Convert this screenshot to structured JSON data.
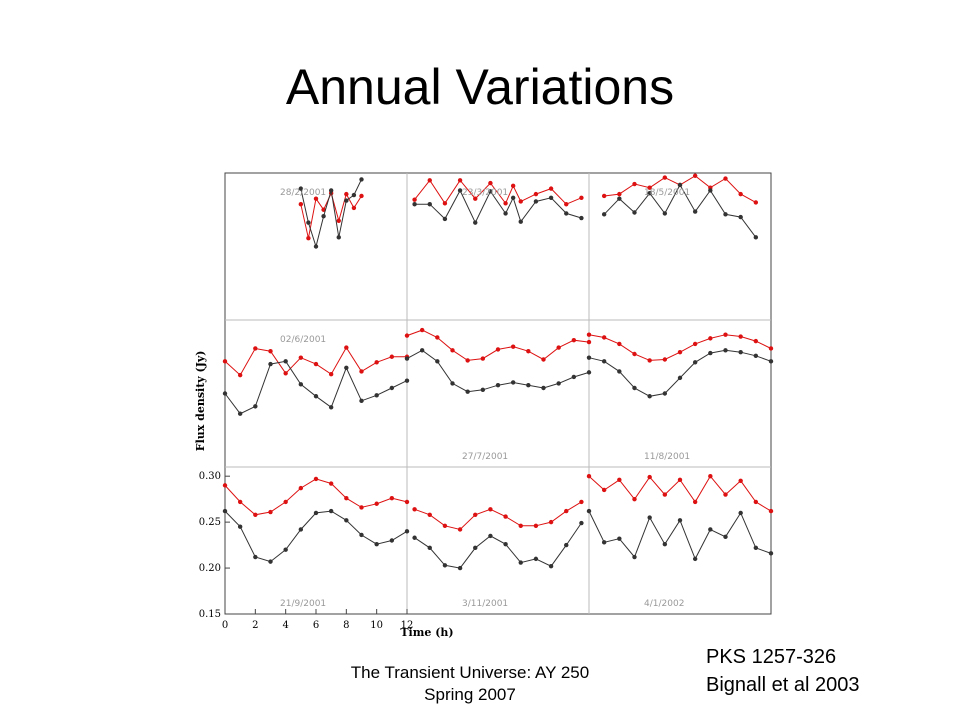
{
  "slide": {
    "title": "Annual Variations",
    "footer_line1": "The Transient Universe: AY 250",
    "footer_line2": "Spring 2007",
    "source_line1": "PKS 1257-326",
    "source_line2": "Bignall et al 2003"
  },
  "colors": {
    "upper_series": "#dd1111",
    "lower_series": "#333333",
    "grid": "#bbbbbb"
  },
  "chart_data": {
    "type": "scatter",
    "xlabel": "Time (h)",
    "ylabel": "Flux density (Jy)",
    "xlim": [
      0,
      12
    ],
    "ylim": [
      0.15,
      0.31
    ],
    "xticks": [
      "0",
      "2",
      "4",
      "6",
      "8",
      "10",
      "12"
    ],
    "yticks": [
      "0.15",
      "0.20",
      "0.25",
      "0.30"
    ],
    "grid": true,
    "panels": [
      {
        "date": "28/2/2001",
        "label_pos": "top",
        "upper": {
          "x": [
            5.0,
            5.5,
            6.0,
            6.5,
            7.0,
            7.5,
            8.0,
            8.5,
            9.0
          ],
          "y": [
            0.276,
            0.239,
            0.282,
            0.27,
            0.288,
            0.258,
            0.287,
            0.272,
            0.285
          ]
        },
        "lower": {
          "x": [
            5.0,
            5.5,
            6.0,
            6.5,
            7.0,
            7.5,
            8.0,
            8.5,
            9.0
          ],
          "y": [
            0.293,
            0.256,
            0.23,
            0.263,
            0.291,
            0.24,
            0.28,
            0.286,
            0.303
          ]
        }
      },
      {
        "date": "23/3/2001",
        "label_pos": "top",
        "upper": {
          "x": [
            0.5,
            1.5,
            2.5,
            3.5,
            4.5,
            5.5,
            6.5,
            7.0,
            7.5,
            8.5,
            9.5,
            10.5,
            11.5
          ],
          "y": [
            0.281,
            0.302,
            0.277,
            0.302,
            0.282,
            0.299,
            0.277,
            0.296,
            0.279,
            0.287,
            0.293,
            0.276,
            0.283
          ]
        },
        "lower": {
          "x": [
            0.5,
            1.5,
            2.5,
            3.5,
            4.5,
            5.5,
            6.5,
            7.0,
            7.5,
            8.5,
            9.5,
            10.5,
            11.5
          ],
          "y": [
            0.276,
            0.276,
            0.26,
            0.291,
            0.256,
            0.29,
            0.266,
            0.283,
            0.257,
            0.279,
            0.283,
            0.266,
            0.261
          ]
        }
      },
      {
        "date": "18/5/2001",
        "label_pos": "top",
        "upper": {
          "x": [
            1.0,
            2.0,
            3.0,
            4.0,
            5.0,
            6.0,
            7.0,
            8.0,
            9.0,
            10.0,
            11.0
          ],
          "y": [
            0.285,
            0.287,
            0.298,
            0.294,
            0.305,
            0.297,
            0.307,
            0.294,
            0.304,
            0.287,
            0.278
          ]
        },
        "lower": {
          "x": [
            1.0,
            2.0,
            3.0,
            4.0,
            5.0,
            6.0,
            7.0,
            8.0,
            9.0,
            10.0,
            11.0
          ],
          "y": [
            0.265,
            0.282,
            0.267,
            0.288,
            0.266,
            0.297,
            0.268,
            0.291,
            0.265,
            0.262,
            0.24
          ]
        }
      },
      {
        "date": "02/6/2001",
        "label_pos": "top",
        "upper": {
          "x": [
            0.0,
            1.0,
            2.0,
            3.0,
            4.0,
            5.0,
            6.0,
            7.0,
            8.0,
            9.0,
            10.0,
            11.0,
            12.0
          ],
          "y": [
            0.265,
            0.25,
            0.279,
            0.276,
            0.252,
            0.269,
            0.262,
            0.251,
            0.28,
            0.254,
            0.264,
            0.27,
            0.27
          ]
        },
        "lower": {
          "x": [
            0.0,
            1.0,
            2.0,
            3.0,
            4.0,
            5.0,
            6.0,
            7.0,
            8.0,
            9.0,
            10.0,
            11.0,
            12.0
          ],
          "y": [
            0.23,
            0.208,
            0.216,
            0.262,
            0.265,
            0.24,
            0.227,
            0.215,
            0.258,
            0.222,
            0.228,
            0.236,
            0.244
          ]
        }
      },
      {
        "date": "27/7/2001",
        "label_pos": "bottom",
        "upper": {
          "x": [
            0.0,
            1.0,
            2.0,
            3.0,
            4.0,
            5.0,
            6.0,
            7.0,
            8.0,
            9.0,
            10.0,
            11.0,
            12.0
          ],
          "y": [
            0.293,
            0.299,
            0.291,
            0.277,
            0.266,
            0.268,
            0.278,
            0.281,
            0.276,
            0.267,
            0.28,
            0.288,
            0.286
          ]
        },
        "lower": {
          "x": [
            0.0,
            1.0,
            2.0,
            3.0,
            4.0,
            5.0,
            6.0,
            7.0,
            8.0,
            9.0,
            10.0,
            11.0,
            12.0
          ],
          "y": [
            0.268,
            0.277,
            0.265,
            0.241,
            0.232,
            0.234,
            0.239,
            0.242,
            0.239,
            0.236,
            0.241,
            0.248,
            0.253
          ]
        }
      },
      {
        "date": "11/8/2001",
        "label_pos": "bottom",
        "upper": {
          "x": [
            0.0,
            1.0,
            2.0,
            3.0,
            4.0,
            5.0,
            6.0,
            7.0,
            8.0,
            9.0,
            10.0,
            11.0,
            12.0
          ],
          "y": [
            0.294,
            0.291,
            0.284,
            0.273,
            0.266,
            0.267,
            0.275,
            0.284,
            0.29,
            0.294,
            0.292,
            0.287,
            0.279
          ]
        },
        "lower": {
          "x": [
            0.0,
            1.0,
            2.0,
            3.0,
            4.0,
            5.0,
            6.0,
            7.0,
            8.0,
            9.0,
            10.0,
            11.0,
            12.0
          ],
          "y": [
            0.269,
            0.265,
            0.254,
            0.236,
            0.227,
            0.23,
            0.247,
            0.264,
            0.274,
            0.277,
            0.275,
            0.271,
            0.265
          ]
        }
      },
      {
        "date": "21/9/2001",
        "label_pos": "bottom",
        "upper": {
          "x": [
            0.0,
            1.0,
            2.0,
            3.0,
            4.0,
            5.0,
            6.0,
            7.0,
            8.0,
            9.0,
            10.0,
            11.0,
            12.0
          ],
          "y": [
            0.29,
            0.272,
            0.258,
            0.261,
            0.272,
            0.287,
            0.297,
            0.292,
            0.276,
            0.266,
            0.27,
            0.276,
            0.272
          ]
        },
        "lower": {
          "x": [
            0.0,
            1.0,
            2.0,
            3.0,
            4.0,
            5.0,
            6.0,
            7.0,
            8.0,
            9.0,
            10.0,
            11.0,
            12.0
          ],
          "y": [
            0.262,
            0.245,
            0.212,
            0.207,
            0.22,
            0.242,
            0.26,
            0.262,
            0.252,
            0.236,
            0.226,
            0.23,
            0.24
          ]
        }
      },
      {
        "date": "3/11/2001",
        "label_pos": "bottom",
        "upper": {
          "x": [
            0.5,
            1.5,
            2.5,
            3.5,
            4.5,
            5.5,
            6.5,
            7.5,
            8.5,
            9.5,
            10.5,
            11.5
          ],
          "y": [
            0.264,
            0.258,
            0.246,
            0.242,
            0.258,
            0.264,
            0.256,
            0.246,
            0.246,
            0.25,
            0.262,
            0.272
          ]
        },
        "lower": {
          "x": [
            0.5,
            1.5,
            2.5,
            3.5,
            4.5,
            5.5,
            6.5,
            7.5,
            8.5,
            9.5,
            10.5,
            11.5
          ],
          "y": [
            0.233,
            0.222,
            0.203,
            0.2,
            0.222,
            0.235,
            0.226,
            0.206,
            0.21,
            0.202,
            0.225,
            0.249
          ]
        }
      },
      {
        "date": "4/1/2002",
        "label_pos": "bottom",
        "upper": {
          "x": [
            0.0,
            1.0,
            2.0,
            3.0,
            4.0,
            5.0,
            6.0,
            7.0,
            8.0,
            9.0,
            10.0,
            11.0,
            12.0
          ],
          "y": [
            0.3,
            0.285,
            0.296,
            0.275,
            0.299,
            0.28,
            0.296,
            0.272,
            0.3,
            0.28,
            0.295,
            0.272,
            0.262
          ]
        },
        "lower": {
          "x": [
            0.0,
            1.0,
            2.0,
            3.0,
            4.0,
            5.0,
            6.0,
            7.0,
            8.0,
            9.0,
            10.0,
            11.0,
            12.0
          ],
          "y": [
            0.262,
            0.228,
            0.232,
            0.212,
            0.255,
            0.226,
            0.252,
            0.21,
            0.242,
            0.234,
            0.26,
            0.222,
            0.216
          ]
        }
      }
    ]
  }
}
